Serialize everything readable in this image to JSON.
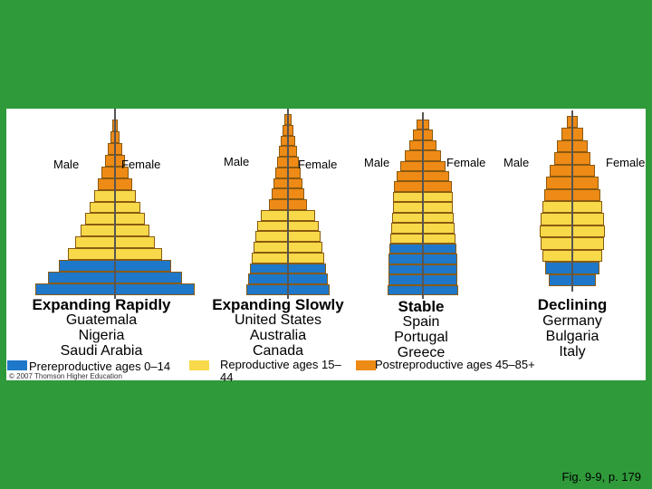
{
  "colors": {
    "background": "#2f9a3a",
    "prereproductive": "#1e77c8",
    "reproductive": "#f7d94a",
    "postreproductive": "#ee8a16"
  },
  "labels": {
    "male": "Male",
    "female": "Female"
  },
  "pyramids": [
    {
      "title": "Expanding Rapidly",
      "countries": [
        "Guatemala",
        "Nigeria",
        "Saudi Arabia"
      ],
      "shape": "rapid",
      "bars": [
        "post",
        "post",
        "post",
        "post",
        "post",
        "post",
        "rep",
        "rep",
        "rep",
        "rep",
        "rep",
        "rep",
        "pre",
        "pre",
        "pre"
      ]
    },
    {
      "title": "Expanding Slowly",
      "countries": [
        "United States",
        "Australia",
        "Canada"
      ],
      "shape": "slow",
      "bars": [
        "post",
        "post",
        "post",
        "post",
        "post",
        "post",
        "post",
        "post",
        "post",
        "rep",
        "rep",
        "rep",
        "rep",
        "rep",
        "pre",
        "pre",
        "pre"
      ]
    },
    {
      "title": "Stable",
      "countries": [
        "Spain",
        "Portugal",
        "Greece"
      ],
      "shape": "stable",
      "bars": [
        "post",
        "post",
        "post",
        "post",
        "post",
        "post",
        "post",
        "rep",
        "rep",
        "rep",
        "rep",
        "rep",
        "pre",
        "pre",
        "pre",
        "pre",
        "pre"
      ]
    },
    {
      "title": "Declining",
      "countries": [
        "Germany",
        "Bulgaria",
        "Italy"
      ],
      "shape": "declining",
      "bars": [
        "post",
        "post",
        "post",
        "post",
        "post",
        "post",
        "post",
        "rep",
        "rep",
        "rep",
        "rep",
        "rep",
        "pre",
        "pre"
      ]
    }
  ],
  "legend": {
    "prereproductive": "Prereproductive ages 0–14",
    "reproductive": "Reproductive ages 15–44",
    "postreproductive": "Postreproductive ages 45–85+"
  },
  "copyright": "© 2007 Thomson Higher Education",
  "figure_ref": "Fig. 9-9, p. 179"
}
